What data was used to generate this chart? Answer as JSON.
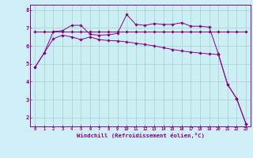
{
  "line1_x": [
    0,
    1,
    2,
    3,
    4,
    5,
    6,
    7,
    8,
    9,
    10,
    11,
    12,
    13,
    14,
    15,
    16,
    17,
    18,
    19,
    20,
    21,
    22,
    23
  ],
  "line1_y": [
    6.82,
    6.82,
    6.82,
    6.82,
    6.82,
    6.82,
    6.82,
    6.82,
    6.82,
    6.82,
    6.82,
    6.82,
    6.82,
    6.82,
    6.82,
    6.82,
    6.82,
    6.82,
    6.82,
    6.82,
    6.82,
    6.82,
    6.82,
    6.82
  ],
  "line2_x": [
    0,
    1,
    2,
    3,
    4,
    5,
    6,
    7,
    8,
    9,
    10,
    11,
    12,
    13,
    14,
    15,
    16,
    17,
    18,
    19,
    20,
    21,
    22,
    23
  ],
  "line2_y": [
    4.8,
    5.6,
    6.8,
    6.85,
    7.15,
    7.15,
    6.65,
    6.6,
    6.62,
    6.7,
    7.75,
    7.2,
    7.15,
    7.25,
    7.2,
    7.2,
    7.3,
    7.1,
    7.1,
    7.05,
    5.55,
    3.85,
    3.05,
    1.65
  ],
  "line3_x": [
    0,
    1,
    2,
    3,
    4,
    5,
    6,
    7,
    8,
    9,
    10,
    11,
    12,
    13,
    14,
    15,
    16,
    17,
    18,
    19,
    20,
    21,
    22,
    23
  ],
  "line3_y": [
    4.8,
    5.6,
    6.4,
    6.6,
    6.5,
    6.35,
    6.5,
    6.35,
    6.3,
    6.28,
    6.22,
    6.15,
    6.08,
    6.0,
    5.9,
    5.8,
    5.72,
    5.65,
    5.6,
    5.55,
    5.52,
    3.85,
    3.05,
    1.65
  ],
  "line_color": "#880088",
  "background_color": "#d0eef5",
  "plot_bg_color": "#cceef5",
  "xlim_min": -0.5,
  "xlim_max": 23.5,
  "ylim_min": 1.5,
  "ylim_max": 8.3,
  "yticks": [
    2,
    3,
    4,
    5,
    6,
    7,
    8
  ],
  "xticks": [
    0,
    1,
    2,
    3,
    4,
    5,
    6,
    7,
    8,
    9,
    10,
    11,
    12,
    13,
    14,
    15,
    16,
    17,
    18,
    19,
    20,
    21,
    22,
    23
  ],
  "xlabel": "Windchill (Refroidissement éolien,°C)",
  "grid_color": "#aacccc",
  "marker": "D",
  "markersize": 1.8,
  "linewidth": 0.7,
  "tick_fontsize": 4.0,
  "xlabel_fontsize": 5.2
}
